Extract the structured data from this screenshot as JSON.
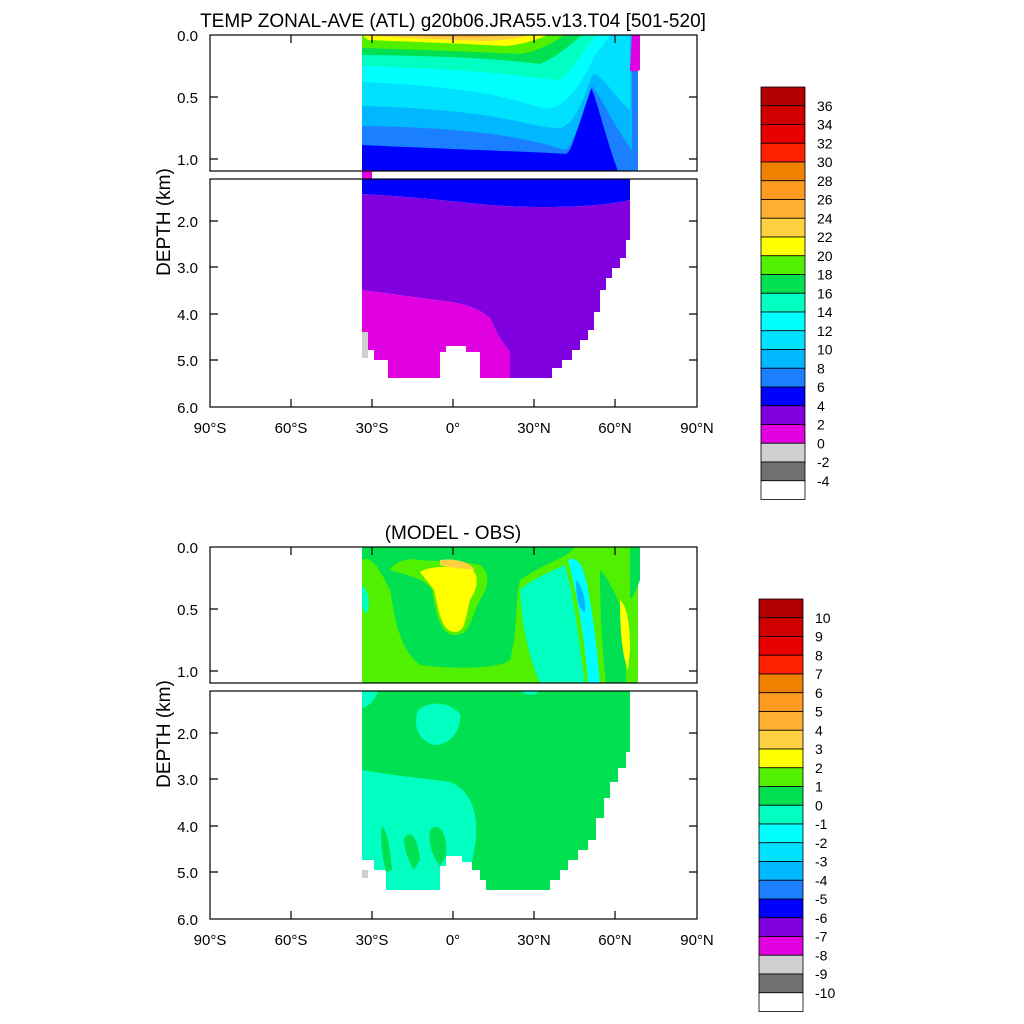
{
  "chart_data": [
    {
      "type": "heatmap",
      "subtype": "filled-contour depth section",
      "title": "TEMP ZONAL-AVE (ATL) g20b06.JRA55.v13.T04 [501-520]",
      "ylabel": "DEPTH (km)",
      "x_ticks": [
        {
          "value": -90,
          "label": "90°S"
        },
        {
          "value": -60,
          "label": "60°S"
        },
        {
          "value": -30,
          "label": "30°S"
        },
        {
          "value": 0,
          "label": "0°"
        },
        {
          "value": 30,
          "label": "30°N"
        },
        {
          "value": 60,
          "label": "60°N"
        },
        {
          "value": 90,
          "label": "90°N"
        }
      ],
      "y_ticks_upper": [
        "0.0",
        "0.5",
        "1.0"
      ],
      "y_ticks_lower": [
        "2.0",
        "3.0",
        "4.0",
        "5.0",
        "6.0"
      ],
      "upper_depth_range_km": [
        0,
        1.1
      ],
      "lower_depth_range_km": [
        1.1,
        6.0
      ],
      "xlim": [
        -90,
        90
      ],
      "colorbar": {
        "labels": [
          "36",
          "34",
          "32",
          "30",
          "28",
          "26",
          "24",
          "22",
          "20",
          "18",
          "16",
          "14",
          "12",
          "10",
          "8",
          "6",
          "4",
          "2",
          "0",
          "-2",
          "-4"
        ],
        "colors": [
          "#b00000",
          "#d00000",
          "#e80000",
          "#ff2000",
          "#f08000",
          "#ff9a20",
          "#ffb030",
          "#ffd040",
          "#ffff00",
          "#50f000",
          "#00e050",
          "#00ffc0",
          "#00ffff",
          "#00e0ff",
          "#00b8ff",
          "#1a80ff",
          "#0000ff",
          "#8000e0",
          "#e000e0",
          "#d0d0d0",
          "#707070",
          "#ffffff"
        ]
      }
    },
    {
      "type": "heatmap",
      "subtype": "filled-contour depth section",
      "title": "(MODEL - OBS)",
      "ylabel": "DEPTH (km)",
      "x_ticks": [
        {
          "value": -90,
          "label": "90°S"
        },
        {
          "value": -60,
          "label": "60°S"
        },
        {
          "value": -30,
          "label": "30°S"
        },
        {
          "value": 0,
          "label": "0°"
        },
        {
          "value": 30,
          "label": "30°N"
        },
        {
          "value": 60,
          "label": "60°N"
        },
        {
          "value": 90,
          "label": "90°N"
        }
      ],
      "y_ticks_upper": [
        "0.0",
        "0.5",
        "1.0"
      ],
      "y_ticks_lower": [
        "2.0",
        "3.0",
        "4.0",
        "5.0",
        "6.0"
      ],
      "upper_depth_range_km": [
        0,
        1.1
      ],
      "lower_depth_range_km": [
        1.1,
        6.0
      ],
      "xlim": [
        -90,
        90
      ],
      "colorbar": {
        "labels": [
          "10",
          "9",
          "8",
          "7",
          "6",
          "5",
          "4",
          "3",
          "2",
          "1",
          "0",
          "-1",
          "-2",
          "-3",
          "-4",
          "-5",
          "-6",
          "-7",
          "-8",
          "-9",
          "-10"
        ],
        "colors": [
          "#b00000",
          "#d00000",
          "#e80000",
          "#ff2000",
          "#f08000",
          "#ff9a20",
          "#ffb030",
          "#ffd040",
          "#ffff00",
          "#50f000",
          "#00e050",
          "#00ffc0",
          "#00ffff",
          "#00e0ff",
          "#00b8ff",
          "#1a80ff",
          "#0000ff",
          "#8000e0",
          "#e000e0",
          "#d0d0d0",
          "#707070",
          "#ffffff"
        ]
      }
    }
  ]
}
